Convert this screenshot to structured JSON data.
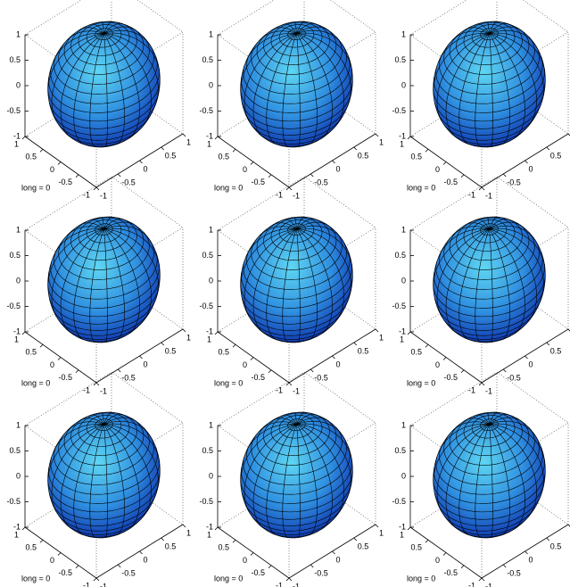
{
  "chart_data": [
    {
      "type": "surface",
      "label": "long = 0",
      "xlim": [
        -1,
        1
      ],
      "xticks": [
        -1,
        -0.5,
        0,
        0.5,
        1
      ],
      "ylim": [
        -1,
        1
      ],
      "yticks": [
        -1,
        -0.5,
        0,
        0.5,
        1
      ],
      "zlim": [
        -1,
        1
      ],
      "zticks": [
        -1,
        -0.5,
        0,
        0.5,
        1
      ]
    },
    {
      "type": "surface",
      "label": "long = 0",
      "xlim": [
        -1,
        1
      ],
      "xticks": [
        -1,
        -0.5,
        0,
        0.5,
        1
      ],
      "ylim": [
        -1,
        1
      ],
      "yticks": [
        -1,
        -0.5,
        0,
        0.5,
        1
      ],
      "zlim": [
        -1,
        1
      ],
      "zticks": [
        -1,
        -0.5,
        0,
        0.5,
        1
      ]
    },
    {
      "type": "surface",
      "label": "long = 0",
      "xlim": [
        -1,
        1
      ],
      "xticks": [
        -1,
        -0.5,
        0,
        0.5,
        1
      ],
      "ylim": [
        -1,
        1
      ],
      "yticks": [
        -1,
        -0.5,
        0,
        0.5,
        1
      ],
      "zlim": [
        -1,
        1
      ],
      "zticks": [
        -1,
        -0.5,
        0,
        0.5,
        1
      ]
    },
    {
      "type": "surface",
      "label": "long = 0",
      "xlim": [
        -1,
        1
      ],
      "xticks": [
        -1,
        -0.5,
        0,
        0.5,
        1
      ],
      "ylim": [
        -1,
        1
      ],
      "yticks": [
        -1,
        -0.5,
        0,
        0.5,
        1
      ],
      "zlim": [
        -1,
        1
      ],
      "zticks": [
        -1,
        -0.5,
        0,
        0.5,
        1
      ]
    },
    {
      "type": "surface",
      "label": "long = 0",
      "xlim": [
        -1,
        1
      ],
      "xticks": [
        -1,
        -0.5,
        0,
        0.5,
        1
      ],
      "ylim": [
        -1,
        1
      ],
      "yticks": [
        -1,
        -0.5,
        0,
        0.5,
        1
      ],
      "zlim": [
        -1,
        1
      ],
      "zticks": [
        -1,
        -0.5,
        0,
        0.5,
        1
      ]
    },
    {
      "type": "surface",
      "label": "long = 0",
      "xlim": [
        -1,
        1
      ],
      "xticks": [
        -1,
        -0.5,
        0,
        0.5,
        1
      ],
      "ylim": [
        -1,
        1
      ],
      "yticks": [
        -1,
        -0.5,
        0,
        0.5,
        1
      ],
      "zlim": [
        -1,
        1
      ],
      "zticks": [
        -1,
        -0.5,
        0,
        0.5,
        1
      ]
    },
    {
      "type": "surface",
      "label": "long = 0",
      "xlim": [
        -1,
        1
      ],
      "xticks": [
        -1,
        -0.5,
        0,
        0.5,
        1
      ],
      "ylim": [
        -1,
        1
      ],
      "yticks": [
        -1,
        -0.5,
        0,
        0.5,
        1
      ],
      "zlim": [
        -1,
        1
      ],
      "zticks": [
        -1,
        -0.5,
        0,
        0.5,
        1
      ]
    },
    {
      "type": "surface",
      "label": "long = 0",
      "xlim": [
        -1,
        1
      ],
      "xticks": [
        -1,
        -0.5,
        0,
        0.5,
        1
      ],
      "ylim": [
        -1,
        1
      ],
      "yticks": [
        -1,
        -0.5,
        0,
        0.5,
        1
      ],
      "zlim": [
        -1,
        1
      ],
      "zticks": [
        -1,
        -0.5,
        0,
        0.5,
        1
      ]
    },
    {
      "type": "surface",
      "label": "long = 0",
      "xlim": [
        -1,
        1
      ],
      "xticks": [
        -1,
        -0.5,
        0,
        0.5,
        1
      ],
      "ylim": [
        -1,
        1
      ],
      "yticks": [
        -1,
        -0.5,
        0,
        0.5,
        1
      ],
      "zlim": [
        -1,
        1
      ],
      "zticks": [
        -1,
        -0.5,
        0,
        0.5,
        1
      ]
    }
  ]
}
